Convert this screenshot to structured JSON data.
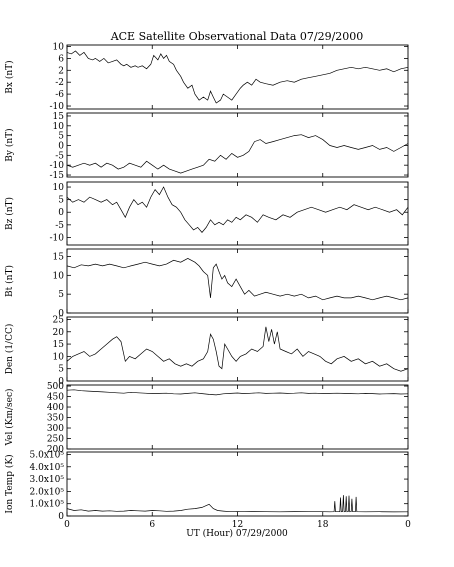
{
  "chart_data": {
    "type": "line",
    "title": "ACE Satellite Observational Data   07/29/2000",
    "xlabel": "UT (Hour)   07/29/2000",
    "x_ticks": [
      "0",
      "6",
      "12",
      "18",
      "0"
    ],
    "xlim": [
      0,
      24
    ],
    "panels": [
      {
        "ylabel": "Bx (nT)",
        "ylim": [
          -11,
          10.5
        ],
        "y_ticks": [
          {
            "v": 10,
            "label": "10"
          },
          {
            "v": 6,
            "label": "6"
          },
          {
            "v": 2,
            "label": "2"
          },
          {
            "v": -2,
            "label": "-2"
          },
          {
            "v": -6,
            "label": "-6"
          },
          {
            "v": -10,
            "label": "-10"
          }
        ],
        "x": [
          0,
          0.3,
          0.6,
          0.9,
          1.2,
          1.5,
          1.8,
          2.0,
          2.3,
          2.6,
          2.9,
          3.2,
          3.5,
          3.8,
          4.0,
          4.2,
          4.5,
          4.8,
          5.0,
          5.3,
          5.6,
          5.9,
          6.1,
          6.4,
          6.6,
          6.8,
          7.0,
          7.2,
          7.5,
          7.7,
          8.0,
          8.2,
          8.5,
          8.8,
          9.0,
          9.3,
          9.6,
          9.9,
          10.1,
          10.3,
          10.5,
          10.8,
          11.0,
          11.3,
          11.6,
          11.9,
          12.2,
          12.4,
          12.7,
          13.0,
          13.3,
          13.6,
          14.0,
          14.5,
          15.0,
          15.5,
          16.0,
          16.5,
          17.0,
          17.5,
          18.0,
          18.5,
          19.0,
          19.5,
          20.0,
          20.5,
          21.0,
          21.5,
          22.0,
          22.5,
          23.0,
          23.5,
          24.0
        ],
        "y": [
          8,
          7.5,
          8.5,
          7,
          8,
          6,
          5.5,
          6,
          5,
          6,
          4.5,
          5,
          5.5,
          4,
          3.5,
          4,
          3,
          3.5,
          3,
          3.5,
          2.5,
          4,
          7,
          5.5,
          7.5,
          6,
          7,
          5,
          4,
          2,
          0,
          -2,
          -4,
          -3,
          -6,
          -8,
          -7,
          -8,
          -5,
          -7,
          -9,
          -8,
          -6,
          -7,
          -8,
          -6,
          -4,
          -3,
          -2,
          -3,
          -1,
          -2,
          -2.5,
          -3,
          -2,
          -1.5,
          -2,
          -1,
          -0.5,
          0,
          0.5,
          1,
          2,
          2.5,
          3,
          2.5,
          3,
          2.5,
          2,
          2.5,
          1.5,
          2.5,
          3
        ]
      },
      {
        "ylabel": "By (nT)",
        "ylim": [
          -16,
          16.5
        ],
        "y_ticks": [
          {
            "v": 15,
            "label": "15"
          },
          {
            "v": 10,
            "label": "10"
          },
          {
            "v": 5,
            "label": "5"
          },
          {
            "v": 0,
            "label": "0"
          },
          {
            "v": -5,
            "label": "-5"
          },
          {
            "v": -10,
            "label": "-10"
          },
          {
            "v": -15,
            "label": "-15"
          }
        ],
        "x": [
          0,
          0.4,
          0.8,
          1.2,
          1.6,
          2.0,
          2.4,
          2.8,
          3.2,
          3.6,
          4.0,
          4.4,
          4.8,
          5.2,
          5.6,
          6.0,
          6.4,
          6.8,
          7.2,
          7.6,
          8.0,
          8.4,
          8.8,
          9.2,
          9.6,
          10.0,
          10.4,
          10.8,
          11.2,
          11.6,
          12.0,
          12.4,
          12.8,
          13.2,
          13.6,
          14.0,
          14.5,
          15.0,
          15.5,
          16.0,
          16.5,
          17.0,
          17.5,
          18.0,
          18.5,
          19.0,
          19.5,
          20.0,
          20.5,
          21.0,
          21.5,
          22.0,
          22.5,
          23.0,
          23.5,
          24.0
        ],
        "y": [
          -10,
          -11,
          -10,
          -9,
          -10,
          -9,
          -11,
          -9,
          -10,
          -12,
          -11,
          -9,
          -10,
          -11,
          -8,
          -10,
          -12,
          -10,
          -12,
          -13,
          -14,
          -13,
          -12,
          -11,
          -10,
          -7,
          -8,
          -5,
          -7,
          -4,
          -6,
          -5,
          -3,
          2,
          3,
          1,
          2,
          3,
          4,
          5,
          5.5,
          4,
          5,
          3,
          0,
          -1,
          0,
          -1,
          -2,
          -1,
          0,
          -2,
          -1,
          -3,
          -1,
          1
        ]
      },
      {
        "ylabel": "Bz (nT)",
        "ylim": [
          -13,
          12
        ],
        "y_ticks": [
          {
            "v": 10,
            "label": "10"
          },
          {
            "v": 5,
            "label": "5"
          },
          {
            "v": 0,
            "label": "0"
          },
          {
            "v": -5,
            "label": "-5"
          },
          {
            "v": -10,
            "label": "-10"
          }
        ],
        "x": [
          0,
          0.4,
          0.8,
          1.2,
          1.6,
          2.0,
          2.4,
          2.8,
          3.2,
          3.5,
          3.8,
          4.1,
          4.4,
          4.7,
          5.0,
          5.3,
          5.6,
          5.9,
          6.2,
          6.5,
          6.8,
          7.1,
          7.4,
          7.7,
          8.0,
          8.3,
          8.6,
          8.9,
          9.2,
          9.5,
          9.8,
          10.1,
          10.4,
          10.7,
          11.0,
          11.3,
          11.6,
          11.9,
          12.2,
          12.6,
          13.0,
          13.4,
          13.8,
          14.2,
          14.7,
          15.2,
          15.7,
          16.2,
          16.7,
          17.2,
          17.7,
          18.2,
          18.7,
          19.2,
          19.7,
          20.2,
          20.7,
          21.2,
          21.7,
          22.2,
          22.7,
          23.2,
          23.6,
          24.0
        ],
        "y": [
          6,
          4,
          5,
          4,
          6,
          5,
          4,
          5,
          3,
          4,
          1,
          -2,
          2,
          5,
          3,
          4,
          2,
          6,
          9,
          7,
          10,
          6,
          3,
          2,
          0,
          -3,
          -5,
          -7,
          -6,
          -8,
          -6,
          -3,
          -5,
          -4,
          -5,
          -3,
          -4,
          -2,
          -3,
          -1,
          -2,
          -4,
          -1,
          -2,
          -3,
          -1,
          -2,
          0,
          1,
          2,
          1,
          0,
          1,
          2,
          1,
          3,
          2,
          1,
          2,
          1,
          0,
          1,
          -1,
          2
        ]
      },
      {
        "ylabel": "Bt (nT)",
        "ylim": [
          0,
          17
        ],
        "y_ticks": [
          {
            "v": 15,
            "label": "15"
          },
          {
            "v": 10,
            "label": "10"
          },
          {
            "v": 5,
            "label": "5"
          },
          {
            "v": 0,
            "label": "0"
          }
        ],
        "x": [
          0,
          0.5,
          1.0,
          1.5,
          2.0,
          2.5,
          3.0,
          3.5,
          4.0,
          4.5,
          5.0,
          5.5,
          6.0,
          6.5,
          7.0,
          7.5,
          8.0,
          8.5,
          9.0,
          9.3,
          9.6,
          9.9,
          10.1,
          10.3,
          10.5,
          10.7,
          10.9,
          11.1,
          11.3,
          11.6,
          11.9,
          12.2,
          12.5,
          12.8,
          13.2,
          13.6,
          14.0,
          14.5,
          15.0,
          15.5,
          16.0,
          16.5,
          17.0,
          17.5,
          18.0,
          18.5,
          19.0,
          19.5,
          20.0,
          20.5,
          21.0,
          21.5,
          22.0,
          22.5,
          23.0,
          23.5,
          24.0
        ],
        "y": [
          12.5,
          12,
          12.8,
          12.5,
          13,
          12.5,
          13,
          12.5,
          12,
          12.5,
          13,
          13.5,
          13,
          12.5,
          13,
          14,
          13.5,
          14.5,
          13.5,
          12.5,
          11,
          10,
          4,
          12,
          13,
          11,
          9,
          10,
          8,
          7,
          9,
          7,
          5,
          6,
          4.5,
          5,
          5.5,
          5,
          4.5,
          5,
          4.5,
          5,
          4,
          4.5,
          3.5,
          4,
          4.5,
          4,
          4,
          4.5,
          4,
          3.5,
          4,
          4.5,
          4,
          3.5,
          4
        ]
      },
      {
        "ylabel": "Den (1/CC)",
        "ylim": [
          0,
          26
        ],
        "y_ticks": [
          {
            "v": 25,
            "label": "25"
          },
          {
            "v": 20,
            "label": "20"
          },
          {
            "v": 15,
            "label": "15"
          },
          {
            "v": 10,
            "label": "10"
          },
          {
            "v": 5,
            "label": "5"
          },
          {
            "v": 0,
            "label": "0"
          }
        ],
        "x": [
          0,
          0.4,
          0.8,
          1.2,
          1.6,
          2.0,
          2.4,
          2.8,
          3.2,
          3.5,
          3.8,
          4.1,
          4.4,
          4.8,
          5.2,
          5.6,
          6.0,
          6.4,
          6.8,
          7.2,
          7.6,
          8.0,
          8.4,
          8.8,
          9.2,
          9.6,
          9.9,
          10.1,
          10.3,
          10.5,
          10.7,
          10.9,
          11.1,
          11.3,
          11.6,
          11.9,
          12.2,
          12.6,
          13.0,
          13.4,
          13.8,
          14.0,
          14.2,
          14.4,
          14.6,
          14.8,
          15.0,
          15.4,
          15.8,
          16.2,
          16.6,
          17.0,
          17.4,
          17.8,
          18.2,
          18.6,
          19.0,
          19.5,
          20.0,
          20.5,
          21.0,
          21.5,
          22.0,
          22.5,
          23.0,
          23.5,
          24.0
        ],
        "y": [
          8,
          10,
          11,
          12,
          10,
          11,
          13,
          15,
          17,
          18,
          16,
          8,
          10,
          9,
          11,
          13,
          12,
          10,
          8,
          9,
          7,
          6,
          7,
          6,
          8,
          9,
          12,
          19,
          17,
          12,
          6,
          5,
          15,
          13,
          10,
          8,
          10,
          11,
          13,
          12,
          14,
          22,
          16,
          21,
          15,
          20,
          13,
          12,
          11,
          13,
          10,
          12,
          11,
          10,
          8,
          7,
          9,
          10,
          8,
          9,
          7,
          8,
          6,
          7,
          5,
          4,
          5
        ]
      },
      {
        "ylabel": "Vel (Km/sec)",
        "ylim": [
          200,
          505
        ],
        "y_ticks": [
          {
            "v": 500,
            "label": "500"
          },
          {
            "v": 450,
            "label": "450"
          },
          {
            "v": 400,
            "label": "400"
          },
          {
            "v": 350,
            "label": "350"
          },
          {
            "v": 300,
            "label": "300"
          },
          {
            "v": 250,
            "label": "250"
          },
          {
            "v": 200,
            "label": "200"
          }
        ],
        "x": [
          0,
          0.5,
          1.0,
          1.5,
          2.0,
          2.5,
          3.0,
          3.5,
          4.0,
          4.5,
          5.0,
          5.5,
          6.0,
          6.5,
          7.0,
          7.5,
          8.0,
          8.5,
          9.0,
          9.5,
          10.0,
          10.5,
          11.0,
          11.5,
          12.0,
          12.5,
          13.0,
          13.5,
          14.0,
          14.5,
          15.0,
          15.5,
          16.0,
          16.5,
          17.0,
          17.5,
          18.0,
          18.5,
          19.0,
          19.5,
          20.0,
          20.5,
          21.0,
          21.5,
          22.0,
          22.5,
          23.0,
          23.5,
          24.0
        ],
        "y": [
          480,
          482,
          478,
          476,
          474,
          472,
          470,
          468,
          466,
          470,
          468,
          466,
          464,
          465,
          466,
          463,
          462,
          465,
          468,
          464,
          460,
          458,
          463,
          465,
          467,
          464,
          466,
          468,
          465,
          466,
          467,
          465,
          466,
          468,
          465,
          466,
          464,
          465,
          466,
          465,
          464,
          463,
          465,
          464,
          462,
          463,
          464,
          462,
          463
        ]
      },
      {
        "ylabel": "Ion Temp (K)",
        "ylim": [
          0,
          520000
        ],
        "y_ticks": [
          {
            "v": 500000,
            "label": "5.0x10⁵"
          },
          {
            "v": 400000,
            "label": "4.0x10⁵"
          },
          {
            "v": 300000,
            "label": "3.0x10⁵"
          },
          {
            "v": 200000,
            "label": "2.0x10⁵"
          },
          {
            "v": 100000,
            "label": "1.0x10⁵"
          },
          {
            "v": 0,
            "label": "0"
          }
        ],
        "x": [
          0,
          0.5,
          1.0,
          1.5,
          2.0,
          2.5,
          3.0,
          3.5,
          4.0,
          4.5,
          5.0,
          5.5,
          6.0,
          6.5,
          7.0,
          7.5,
          8.0,
          8.5,
          9.0,
          9.5,
          10.0,
          10.3,
          10.6,
          11.0,
          11.5,
          12.0,
          12.5,
          13.0,
          14.0,
          15.0,
          16.0,
          17.0,
          18.0,
          18.5,
          18.8,
          18.85,
          18.9,
          19.2,
          19.25,
          19.3,
          19.4,
          19.45,
          19.5,
          19.6,
          19.65,
          19.7,
          19.8,
          19.85,
          19.9,
          20.0,
          20.05,
          20.1,
          20.3,
          20.35,
          20.4,
          21.0,
          22.0,
          23.0,
          24.0
        ],
        "y": [
          60000,
          45000,
          50000,
          40000,
          45000,
          40000,
          42000,
          38000,
          40000,
          45000,
          42000,
          40000,
          45000,
          42000,
          38000,
          40000,
          45000,
          55000,
          60000,
          70000,
          95000,
          60000,
          45000,
          40000,
          35000,
          38000,
          35000,
          36000,
          35000,
          34000,
          36000,
          35000,
          35000,
          34000,
          35000,
          120000,
          35000,
          36000,
          150000,
          35000,
          36000,
          170000,
          35000,
          36000,
          160000,
          35000,
          36000,
          165000,
          35000,
          36000,
          140000,
          35000,
          36000,
          155000,
          35000,
          34000,
          35000,
          33000,
          34000
        ]
      }
    ]
  }
}
